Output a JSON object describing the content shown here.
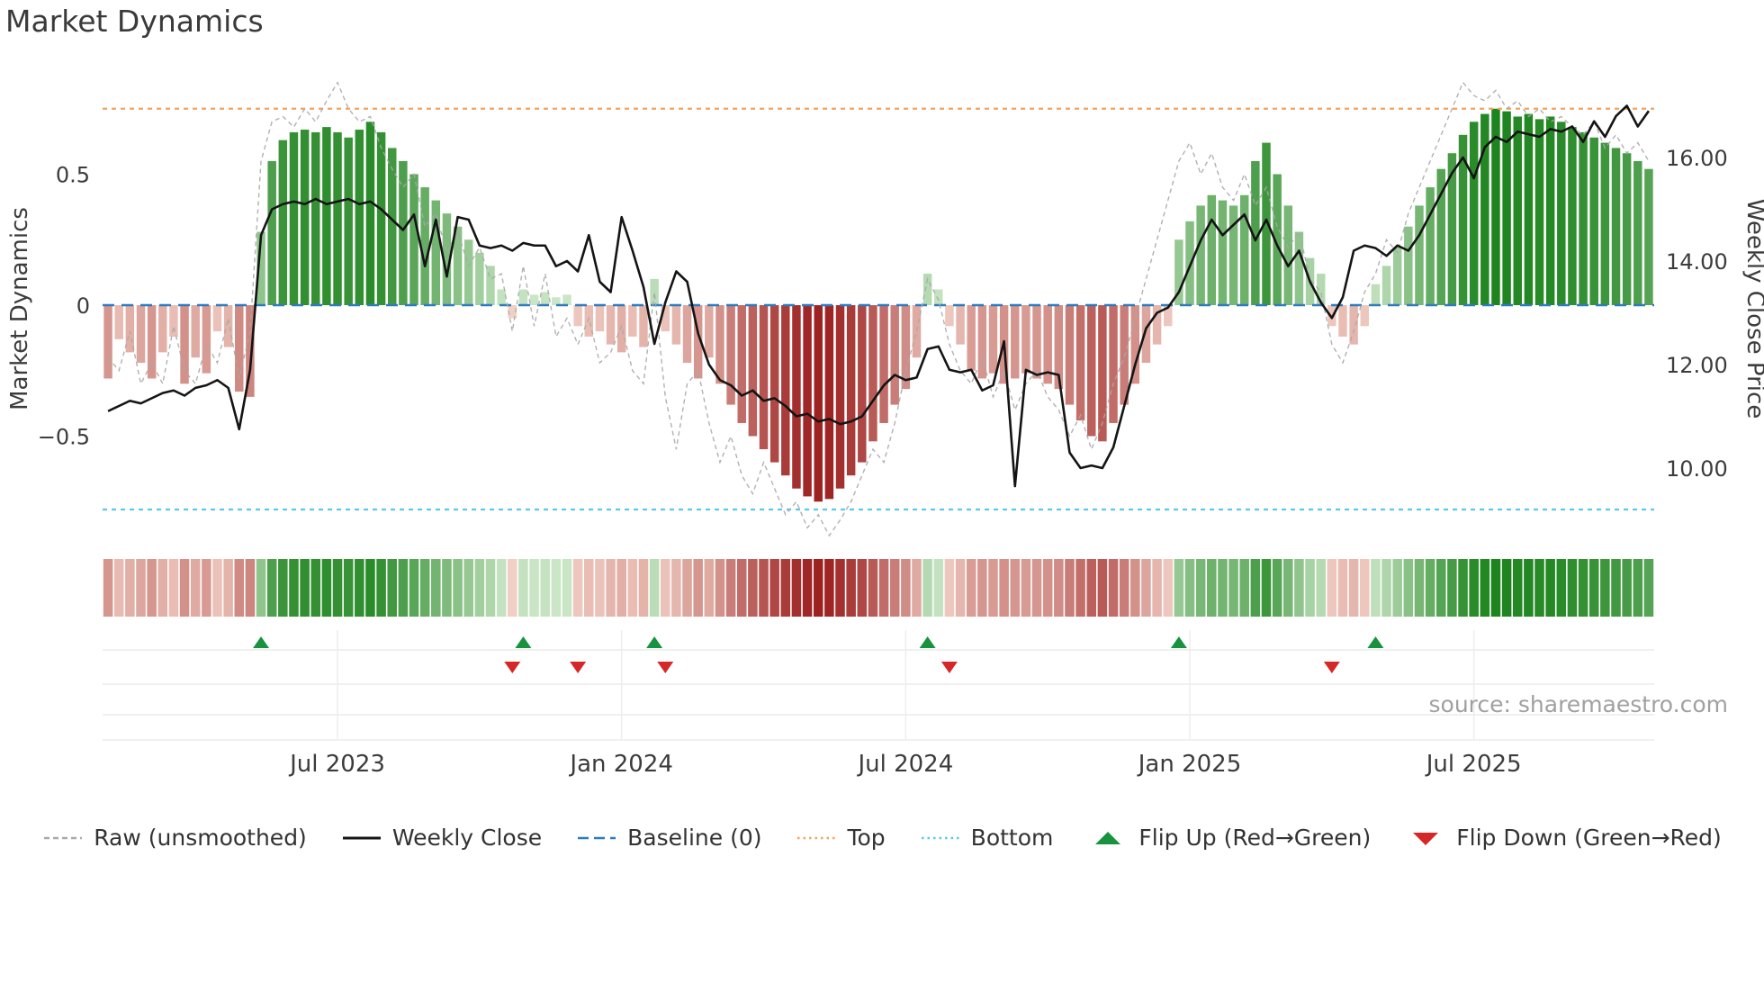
{
  "title": "Market Dynamics",
  "source": "source: sharemaestro.com",
  "left_axis": {
    "label": "Market Dynamics",
    "ticks": [
      {
        "value": 0.5,
        "label": "0.5"
      },
      {
        "value": 0.0,
        "label": "0"
      },
      {
        "value": -0.5,
        "label": "−0.5"
      }
    ]
  },
  "right_axis": {
    "label": "Weekly Close Price",
    "ticks": [
      {
        "value": 16.0,
        "label": "16.00"
      },
      {
        "value": 14.0,
        "label": "14.00"
      },
      {
        "value": 12.0,
        "label": "12.00"
      },
      {
        "value": 10.0,
        "label": "10.00"
      }
    ]
  },
  "legend": [
    {
      "id": "raw",
      "icon": "dashed-line",
      "color": "#a9a9a9",
      "label": "Raw (unsmoothed)"
    },
    {
      "id": "weekly-close",
      "icon": "solid-line",
      "color": "#141414",
      "label": "Weekly Close"
    },
    {
      "id": "baseline",
      "icon": "long-dash-line",
      "color": "#2d7bbf",
      "label": "Baseline (0)"
    },
    {
      "id": "top",
      "icon": "dotted-line",
      "color": "#f0a45f",
      "label": "Top"
    },
    {
      "id": "bottom",
      "icon": "dotted-line",
      "color": "#5bc8ea",
      "label": "Bottom"
    },
    {
      "id": "flip-up",
      "icon": "triangle-up",
      "color": "#18923e",
      "label": "Flip Up (Red→Green)"
    },
    {
      "id": "flip-down",
      "icon": "triangle-down",
      "color": "#d62728",
      "label": "Flip Down (Green→Red)"
    }
  ],
  "chart_data": {
    "type": "bar+line combo with heatmap strip and flip markers",
    "x_unit": "weeks",
    "n_weeks": 142,
    "x_ticks": [
      {
        "week": 21,
        "label": "Jul 2023"
      },
      {
        "week": 47,
        "label": "Jan 2024"
      },
      {
        "week": 73,
        "label": "Jul 2024"
      },
      {
        "week": 99,
        "label": "Jan 2025"
      },
      {
        "week": 125,
        "label": "Jul 2025"
      }
    ],
    "osc_ylim": [
      -0.9,
      0.87
    ],
    "price_ylim": [
      8.6,
      17.6
    ],
    "reference_lines": {
      "baseline": 0,
      "top": 0.75,
      "bottom": -0.78
    },
    "bar_series_name": "Market Dynamics (smoothed oscillator)",
    "bar_values": [
      -0.28,
      -0.13,
      -0.18,
      -0.22,
      -0.28,
      -0.18,
      -0.12,
      -0.3,
      -0.2,
      -0.26,
      -0.1,
      -0.16,
      -0.33,
      -0.35,
      0.28,
      0.55,
      0.63,
      0.66,
      0.67,
      0.66,
      0.68,
      0.66,
      0.64,
      0.67,
      0.7,
      0.66,
      0.6,
      0.55,
      0.5,
      0.45,
      0.4,
      0.35,
      0.3,
      0.25,
      0.2,
      0.15,
      0.06,
      -0.05,
      0.06,
      0.04,
      0.05,
      0.03,
      0.04,
      -0.08,
      -0.12,
      -0.1,
      -0.15,
      -0.18,
      -0.12,
      -0.16,
      0.1,
      -0.1,
      -0.15,
      -0.22,
      -0.28,
      -0.2,
      -0.3,
      -0.38,
      -0.45,
      -0.5,
      -0.55,
      -0.6,
      -0.65,
      -0.7,
      -0.73,
      -0.75,
      -0.74,
      -0.7,
      -0.65,
      -0.6,
      -0.52,
      -0.45,
      -0.38,
      -0.32,
      -0.2,
      0.12,
      0.06,
      -0.08,
      -0.15,
      -0.25,
      -0.28,
      -0.26,
      -0.3,
      -0.28,
      -0.26,
      -0.28,
      -0.3,
      -0.32,
      -0.38,
      -0.44,
      -0.5,
      -0.52,
      -0.45,
      -0.38,
      -0.3,
      -0.22,
      -0.15,
      -0.08,
      0.25,
      0.32,
      0.38,
      0.42,
      0.4,
      0.38,
      0.42,
      0.55,
      0.62,
      0.5,
      0.38,
      0.28,
      0.18,
      0.12,
      -0.08,
      -0.12,
      -0.15,
      -0.08,
      0.08,
      0.15,
      0.22,
      0.3,
      0.38,
      0.45,
      0.52,
      0.58,
      0.65,
      0.7,
      0.73,
      0.75,
      0.74,
      0.72,
      0.73,
      0.71,
      0.72,
      0.7,
      0.68,
      0.66,
      0.64,
      0.62,
      0.6,
      0.58,
      0.55,
      0.52
    ],
    "raw_values": [
      -0.2,
      -0.25,
      -0.1,
      -0.3,
      -0.22,
      -0.3,
      -0.08,
      -0.25,
      -0.3,
      -0.15,
      -0.22,
      -0.05,
      -0.28,
      -0.1,
      0.55,
      0.7,
      0.72,
      0.68,
      0.75,
      0.7,
      0.78,
      0.85,
      0.75,
      0.7,
      0.72,
      0.6,
      0.52,
      0.45,
      0.5,
      0.3,
      0.35,
      0.2,
      0.28,
      0.15,
      0.22,
      0.1,
      0.12,
      -0.1,
      0.15,
      -0.08,
      0.12,
      -0.12,
      -0.05,
      -0.15,
      -0.05,
      -0.22,
      -0.18,
      -0.08,
      -0.25,
      -0.3,
      0.05,
      -0.35,
      -0.55,
      -0.3,
      -0.25,
      -0.45,
      -0.6,
      -0.5,
      -0.65,
      -0.72,
      -0.6,
      -0.7,
      -0.8,
      -0.75,
      -0.85,
      -0.8,
      -0.88,
      -0.82,
      -0.75,
      -0.65,
      -0.55,
      -0.6,
      -0.45,
      -0.25,
      -0.1,
      0.1,
      0.02,
      -0.15,
      -0.25,
      -0.3,
      -0.2,
      -0.35,
      -0.25,
      -0.4,
      -0.3,
      -0.25,
      -0.35,
      -0.4,
      -0.5,
      -0.42,
      -0.55,
      -0.45,
      -0.3,
      -0.2,
      -0.05,
      0.1,
      0.25,
      0.4,
      0.55,
      0.62,
      0.5,
      0.58,
      0.45,
      0.4,
      0.5,
      0.38,
      0.45,
      0.3,
      0.22,
      0.28,
      0.1,
      0.05,
      -0.15,
      -0.22,
      -0.1,
      0.05,
      0.12,
      0.25,
      0.2,
      0.35,
      0.45,
      0.55,
      0.65,
      0.75,
      0.85,
      0.8,
      0.78,
      0.82,
      0.75,
      0.78,
      0.72,
      0.75,
      0.7,
      0.72,
      0.68,
      0.65,
      0.7,
      0.6,
      0.65,
      0.58,
      0.62,
      0.55
    ],
    "weekly_close_values": [
      11.1,
      11.2,
      11.3,
      11.25,
      11.35,
      11.45,
      11.5,
      11.4,
      11.55,
      11.6,
      11.7,
      11.55,
      10.75,
      11.9,
      14.5,
      15.0,
      15.1,
      15.15,
      15.1,
      15.2,
      15.1,
      15.15,
      15.2,
      15.1,
      15.15,
      15.0,
      14.8,
      14.6,
      14.9,
      13.9,
      14.8,
      13.7,
      14.85,
      14.8,
      14.3,
      14.25,
      14.3,
      14.2,
      14.35,
      14.3,
      14.3,
      13.9,
      14.0,
      13.8,
      14.5,
      13.6,
      13.4,
      14.85,
      14.2,
      13.5,
      12.4,
      13.2,
      13.8,
      13.6,
      12.6,
      12.0,
      11.7,
      11.6,
      11.4,
      11.5,
      11.3,
      11.35,
      11.2,
      11.0,
      11.05,
      10.9,
      10.95,
      10.85,
      10.9,
      11.0,
      11.3,
      11.6,
      11.8,
      11.7,
      11.75,
      12.3,
      12.35,
      11.9,
      11.85,
      11.9,
      11.5,
      11.6,
      12.45,
      9.65,
      11.9,
      11.8,
      11.85,
      11.8,
      10.3,
      10.0,
      10.05,
      10.0,
      10.4,
      11.2,
      12.0,
      12.7,
      13.0,
      13.1,
      13.4,
      13.9,
      14.4,
      14.8,
      14.5,
      14.7,
      14.9,
      14.4,
      14.8,
      14.3,
      13.9,
      14.2,
      13.6,
      13.2,
      12.9,
      13.3,
      14.2,
      14.3,
      14.25,
      14.1,
      14.3,
      14.2,
      14.5,
      14.9,
      15.3,
      15.7,
      16.0,
      15.6,
      16.2,
      16.4,
      16.3,
      16.5,
      16.45,
      16.4,
      16.55,
      16.5,
      16.6,
      16.3,
      16.7,
      16.4,
      16.8,
      17.0,
      16.6,
      16.9
    ],
    "markers": {
      "flip_up_weeks": [
        14,
        38,
        50,
        75,
        98,
        116
      ],
      "flip_down_weeks": [
        37,
        43,
        51,
        77,
        112
      ]
    },
    "colors": {
      "green_strong": "#1e841e",
      "green_light": "#d2eacd",
      "red_strong": "#991b1b",
      "red_light": "#f7dbd0",
      "weekly_close": "#141414",
      "raw": "#a9a9a9",
      "baseline": "#2d7bbf",
      "top": "#f0a45f",
      "bottom": "#5bc8ea",
      "flip_up": "#18923e",
      "flip_down": "#d62728"
    },
    "legend_position": "bottom",
    "grid": "faint grid in marker panel only"
  }
}
